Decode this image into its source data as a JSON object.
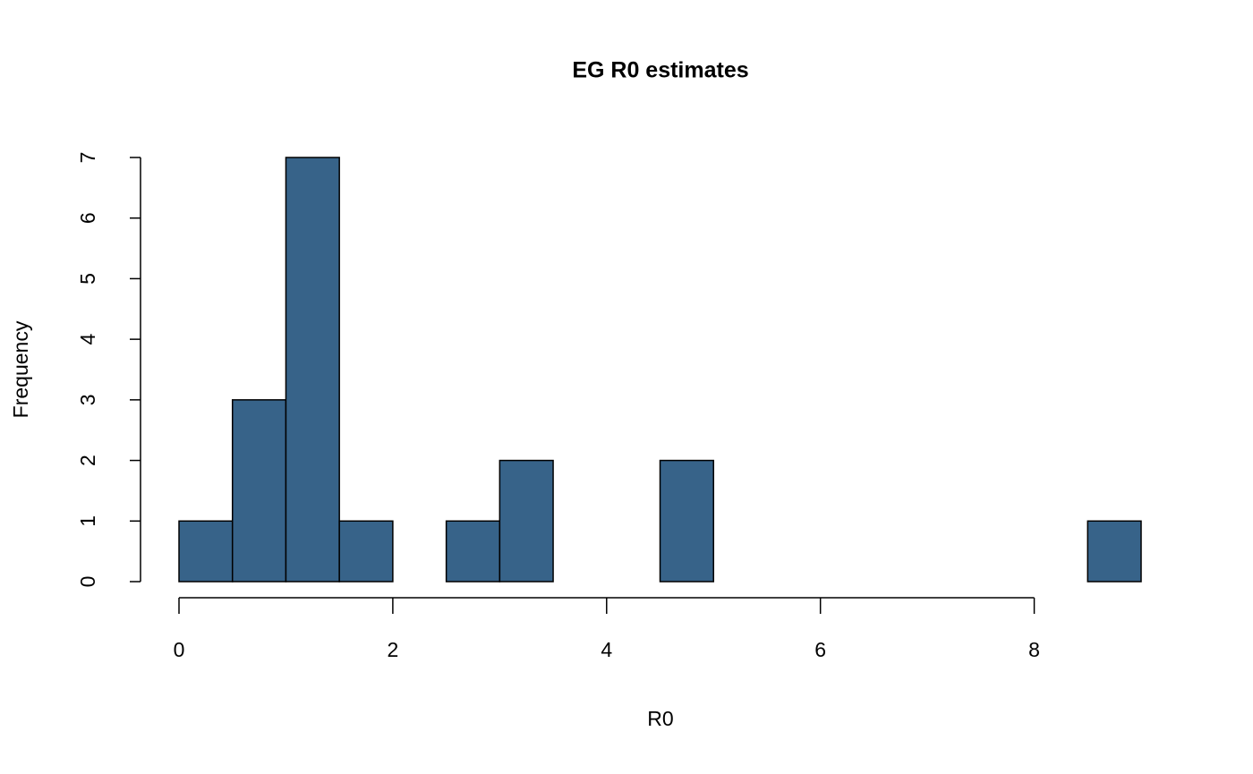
{
  "chart_data": {
    "type": "histogram",
    "title": "EG R0 estimates",
    "x_label": "R0",
    "y_label": "Frequency",
    "bins": [
      0,
      0.5,
      1,
      1.5,
      2,
      2.5,
      3,
      3.5,
      4,
      4.5,
      5,
      5.5,
      6,
      6.5,
      7,
      7.5,
      8,
      8.5,
      9
    ],
    "values": [
      1,
      3,
      7,
      1,
      0,
      1,
      2,
      0,
      0,
      2,
      0,
      0,
      0,
      0,
      0,
      0,
      0,
      1
    ],
    "color": "#376389",
    "xlim": [
      0,
      9
    ],
    "xticks": [
      0,
      2,
      4,
      6,
      8
    ],
    "ylim": [
      0,
      7
    ],
    "yticks": [
      0,
      1,
      2,
      3,
      4,
      5,
      6,
      7
    ]
  }
}
